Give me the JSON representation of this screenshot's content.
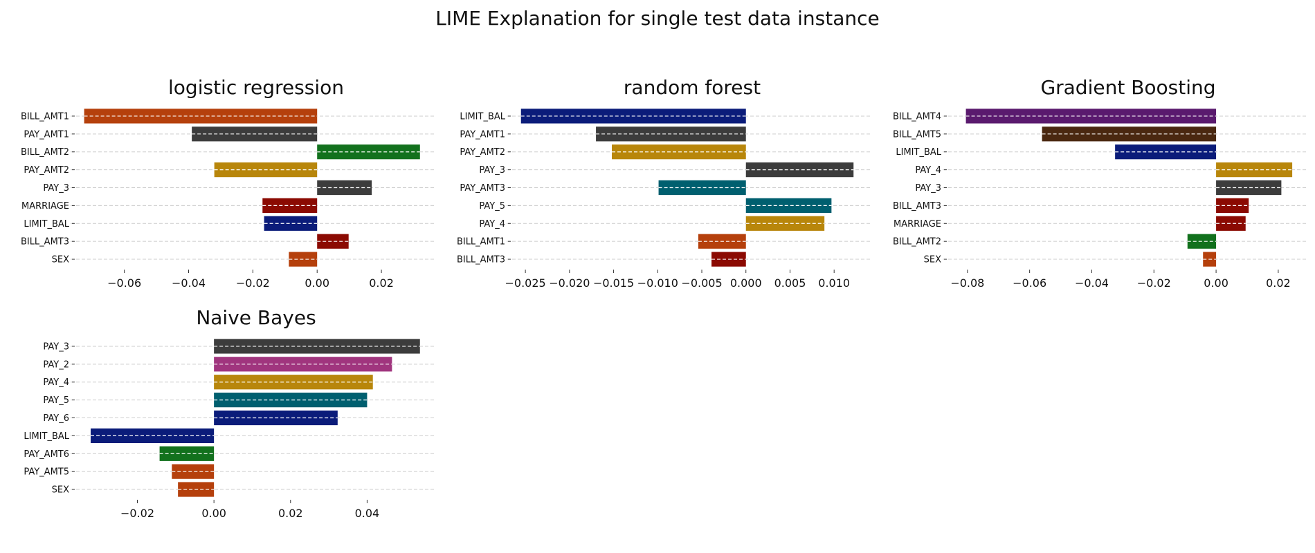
{
  "suptitle": "LIME Explanation for single test data instance",
  "colors": {
    "BILL_AMT1": "#b5400c",
    "PAY_AMT1": "#3c3c3c",
    "BILL_AMT2": "#12711d",
    "PAY_AMT2": "#b8860b",
    "PAY_3": "#3c3c3c",
    "MARRIAGE": "#8b0a02",
    "LIMIT_BAL": "#0b1c7a",
    "BILL_AMT3": "#8b0a02",
    "SEX": "#b5400c",
    "PAY_AMT3": "#005f6f",
    "PAY_5": "#005f6f",
    "PAY_4": "#b8860b",
    "BILL_AMT4": "#5a1a6e",
    "BILL_AMT5": "#4a2810",
    "PAY_2": "#a0357e",
    "PAY_6": "#0b1c7a",
    "PAY_AMT6": "#12711d",
    "PAY_AMT5": "#b5400c",
    "grid": "#cccccc",
    "bar_dash": "#ffffff"
  },
  "chart_data": [
    {
      "type": "bar",
      "orientation": "horizontal",
      "title": "logistic regression",
      "categories": [
        "BILL_AMT1",
        "PAY_AMT1",
        "BILL_AMT2",
        "PAY_AMT2",
        "PAY_3",
        "MARRIAGE",
        "LIMIT_BAL",
        "BILL_AMT3",
        "SEX"
      ],
      "values": [
        -0.0725,
        -0.039,
        0.032,
        -0.032,
        0.017,
        -0.017,
        -0.0165,
        0.0098,
        -0.0088
      ],
      "xlim": [
        -0.075,
        0.037
      ],
      "xticks": [
        -0.06,
        -0.04,
        -0.02,
        0.0,
        0.02
      ],
      "xtick_labels": [
        "−0.06",
        "−0.04",
        "−0.02",
        "0.00",
        "0.02"
      ],
      "grid": true
    },
    {
      "type": "bar",
      "orientation": "horizontal",
      "title": "random forest",
      "categories": [
        "LIMIT_BAL",
        "PAY_AMT1",
        "PAY_AMT2",
        "PAY_3",
        "PAY_AMT3",
        "PAY_5",
        "PAY_4",
        "BILL_AMT1",
        "BILL_AMT3"
      ],
      "values": [
        -0.0255,
        -0.017,
        -0.0152,
        0.0122,
        -0.0099,
        0.0097,
        0.0089,
        -0.0054,
        -0.0039
      ],
      "xlim": [
        -0.0265,
        0.0143
      ],
      "xticks": [
        -0.025,
        -0.02,
        -0.015,
        -0.01,
        -0.005,
        0.0,
        0.005,
        0.01
      ],
      "xtick_labels": [
        "−0.025",
        "−0.020",
        "−0.015",
        "−0.010",
        "−0.005",
        "0.000",
        "0.005",
        "0.010"
      ],
      "grid": true
    },
    {
      "type": "bar",
      "orientation": "horizontal",
      "title": "Gradient Boosting",
      "categories": [
        "BILL_AMT4",
        "BILL_AMT5",
        "LIMIT_BAL",
        "PAY_4",
        "PAY_3",
        "BILL_AMT3",
        "MARRIAGE",
        "BILL_AMT2",
        "SEX"
      ],
      "values": [
        -0.0805,
        -0.056,
        -0.0325,
        0.0245,
        0.021,
        0.0105,
        0.0095,
        -0.0092,
        -0.0042
      ],
      "xlim": [
        -0.0862,
        0.0296
      ],
      "xticks": [
        -0.08,
        -0.06,
        -0.04,
        -0.02,
        0.0,
        0.02
      ],
      "xtick_labels": [
        "−0.08",
        "−0.06",
        "−0.04",
        "−0.02",
        "0.00",
        "0.02"
      ],
      "grid": true
    },
    {
      "type": "bar",
      "orientation": "horizontal",
      "title": "Naive Bayes",
      "categories": [
        "PAY_3",
        "PAY_2",
        "PAY_4",
        "PAY_5",
        "PAY_6",
        "LIMIT_BAL",
        "PAY_AMT6",
        "PAY_AMT5",
        "SEX"
      ],
      "values": [
        0.0538,
        0.0465,
        0.0415,
        0.04,
        0.0323,
        -0.0322,
        -0.0142,
        -0.011,
        -0.0094
      ],
      "xlim": [
        -0.036,
        0.058
      ],
      "xticks": [
        -0.02,
        0.0,
        0.02,
        0.04
      ],
      "xtick_labels": [
        "−0.02",
        "0.00",
        "0.02",
        "0.04"
      ],
      "grid": true
    }
  ]
}
